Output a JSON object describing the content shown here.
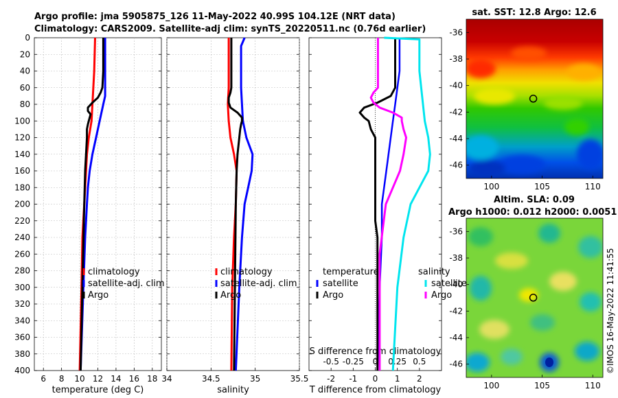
{
  "title_line1": "Argo profile: jma 5905875_126 11-May-2022 40.99S 104.12E (NRT data)",
  "title_line2": "Climatology: CARS2009. Satellite-adj clim: synTS_20220511.nc (0.76d earlier)",
  "watermark": "©IMOS 16-May-2022 11:41:55",
  "colors": {
    "climatology": "#ff0000",
    "satellite": "#0000ff",
    "argo": "#000000",
    "sal_satellite": "#00e5ee",
    "sal_argo": "#ff00ff"
  },
  "chart_data": [
    {
      "type": "line",
      "name": "temperature",
      "xlabel": "temperature (deg C)",
      "ylabel": "",
      "xlim": [
        5,
        19
      ],
      "ylim": [
        400,
        0
      ],
      "xticks": [
        "6",
        "8",
        "10",
        "12",
        "14",
        "16",
        "18"
      ],
      "yticks": [
        "0",
        "20",
        "40",
        "60",
        "80",
        "100",
        "120",
        "140",
        "160",
        "180",
        "200",
        "220",
        "240",
        "260",
        "280",
        "300",
        "320",
        "340",
        "360",
        "380",
        "400"
      ],
      "grid": true,
      "legend": [
        "climatology",
        "satellite-adj. clim",
        "Argo"
      ],
      "series": [
        {
          "name": "climatology",
          "depth": [
            0,
            40,
            60,
            80,
            100,
            120,
            140,
            160,
            200,
            240,
            300,
            400
          ],
          "values": [
            11.7,
            11.6,
            11.5,
            11.4,
            11.3,
            11.0,
            10.8,
            10.7,
            10.5,
            10.3,
            10.2,
            10.0
          ]
        },
        {
          "name": "satellite-adj. clim",
          "depth": [
            0,
            40,
            60,
            70,
            80,
            100,
            120,
            140,
            160,
            180,
            200,
            240,
            300,
            400
          ],
          "values": [
            12.8,
            12.8,
            12.8,
            12.8,
            12.6,
            12.2,
            11.8,
            11.4,
            11.1,
            10.9,
            10.8,
            10.6,
            10.4,
            10.1
          ]
        },
        {
          "name": "Argo",
          "depth": [
            0,
            40,
            60,
            66,
            72,
            78,
            84,
            88,
            92,
            96,
            100,
            104,
            110,
            120,
            140,
            160,
            200,
            300,
            400
          ],
          "values": [
            12.6,
            12.6,
            12.5,
            12.3,
            12.0,
            11.4,
            10.9,
            10.9,
            11.2,
            11.1,
            11.0,
            10.9,
            10.8,
            10.8,
            10.7,
            10.6,
            10.5,
            10.3,
            10.1
          ]
        }
      ]
    },
    {
      "type": "line",
      "name": "salinity",
      "xlabel": "salinity",
      "xlim": [
        34,
        35.5
      ],
      "ylim": [
        400,
        0
      ],
      "xticks": [
        "34",
        "34.5",
        "35",
        "35.5"
      ],
      "grid": true,
      "legend": [
        "climatology",
        "satellite-adj. clim",
        "Argo"
      ],
      "series": [
        {
          "name": "climatology",
          "depth": [
            0,
            60,
            80,
            100,
            120,
            140,
            160,
            200,
            240,
            300,
            400
          ],
          "values": [
            34.7,
            34.7,
            34.69,
            34.7,
            34.72,
            34.76,
            34.79,
            34.78,
            34.76,
            34.74,
            34.73
          ]
        },
        {
          "name": "satellite-adj. clim",
          "depth": [
            0,
            10,
            60,
            80,
            100,
            120,
            140,
            160,
            180,
            200,
            240,
            300,
            400
          ],
          "values": [
            34.88,
            34.84,
            34.84,
            34.85,
            34.86,
            34.9,
            34.97,
            34.96,
            34.92,
            34.88,
            34.85,
            34.82,
            34.78
          ]
        },
        {
          "name": "Argo",
          "depth": [
            0,
            40,
            60,
            66,
            72,
            78,
            84,
            90,
            96,
            100,
            104,
            110,
            120,
            140,
            160,
            200,
            300,
            400
          ],
          "values": [
            34.73,
            34.73,
            34.73,
            34.72,
            34.7,
            34.7,
            34.72,
            34.8,
            34.85,
            34.85,
            34.84,
            34.83,
            34.82,
            34.8,
            34.79,
            34.78,
            34.77,
            34.76
          ]
        }
      ]
    },
    {
      "type": "line",
      "name": "difference from climatology",
      "xlabel": "T difference from climatology",
      "xlabel_top": "S difference from climatology",
      "xlim": [
        -3,
        3
      ],
      "ylim": [
        400,
        0
      ],
      "xticks": [
        "-2",
        "-1",
        "0",
        "1",
        "2"
      ],
      "xticks_top": [
        "-0.5",
        "-0.25",
        "0",
        "0.25",
        "0.5"
      ],
      "grid": false,
      "legend_headers": [
        "temperature",
        "salinity"
      ],
      "legend": [
        "satellite",
        "Argo",
        "satellite",
        "Argo"
      ],
      "series": [
        {
          "name": "temperature satellite",
          "depth": [
            0,
            40,
            60,
            80,
            100,
            120,
            140,
            160,
            200,
            240,
            300,
            400
          ],
          "values": [
            1.1,
            1.1,
            1.0,
            0.9,
            0.8,
            0.7,
            0.6,
            0.5,
            0.3,
            0.3,
            0.2,
            0.1
          ]
        },
        {
          "name": "temperature Argo",
          "depth": [
            0,
            60,
            70,
            78,
            84,
            90,
            96,
            100,
            110,
            120,
            140,
            160,
            200,
            220,
            240,
            300,
            400
          ],
          "values": [
            0.9,
            0.9,
            0.7,
            0.1,
            -0.5,
            -0.7,
            -0.5,
            -0.3,
            -0.2,
            0.0,
            0.0,
            0.0,
            0.0,
            0.0,
            0.1,
            0.1,
            0.1
          ]
        },
        {
          "name": "salinity satellite",
          "depth": [
            0,
            2,
            40,
            60,
            80,
            100,
            120,
            140,
            160,
            180,
            200,
            240,
            300,
            400
          ],
          "values": [
            0.1,
            0.5,
            0.5,
            0.52,
            0.54,
            0.56,
            0.6,
            0.62,
            0.6,
            0.5,
            0.4,
            0.32,
            0.25,
            0.2
          ]
        },
        {
          "name": "salinity Argo",
          "depth": [
            0,
            40,
            60,
            66,
            72,
            78,
            84,
            90,
            96,
            100,
            110,
            120,
            140,
            160,
            180,
            200,
            260,
            300,
            400
          ],
          "values": [
            0.03,
            0.03,
            0.03,
            -0.02,
            -0.05,
            -0.02,
            0.05,
            0.2,
            0.3,
            0.3,
            0.32,
            0.35,
            0.32,
            0.28,
            0.2,
            0.12,
            0.05,
            0.05,
            0.05
          ]
        }
      ]
    },
    {
      "type": "heatmap",
      "name": "satellite SST map",
      "title": "sat. SST: 12.8 Argo: 12.6",
      "xlim": [
        97.5,
        111
      ],
      "ylim": [
        -47,
        -35
      ],
      "xticks": [
        "100",
        "105",
        "110"
      ],
      "yticks": [
        "-36",
        "-38",
        "-40",
        "-42",
        "-44",
        "-46"
      ],
      "marker": {
        "lon": 104.12,
        "lat": -40.99
      }
    },
    {
      "type": "heatmap",
      "name": "altimetry SLA map",
      "title_line1": "Altim. SLA: 0.09",
      "title_line2": "Argo h1000: 0.012 h2000: 0.0051",
      "xlim": [
        97.5,
        111
      ],
      "ylim": [
        -47,
        -35
      ],
      "xticks": [
        "100",
        "105",
        "110"
      ],
      "yticks": [
        "-36",
        "-38",
        "-40",
        "-42",
        "-44",
        "-46"
      ],
      "marker": {
        "lon": 104.12,
        "lat": -40.99
      }
    }
  ]
}
